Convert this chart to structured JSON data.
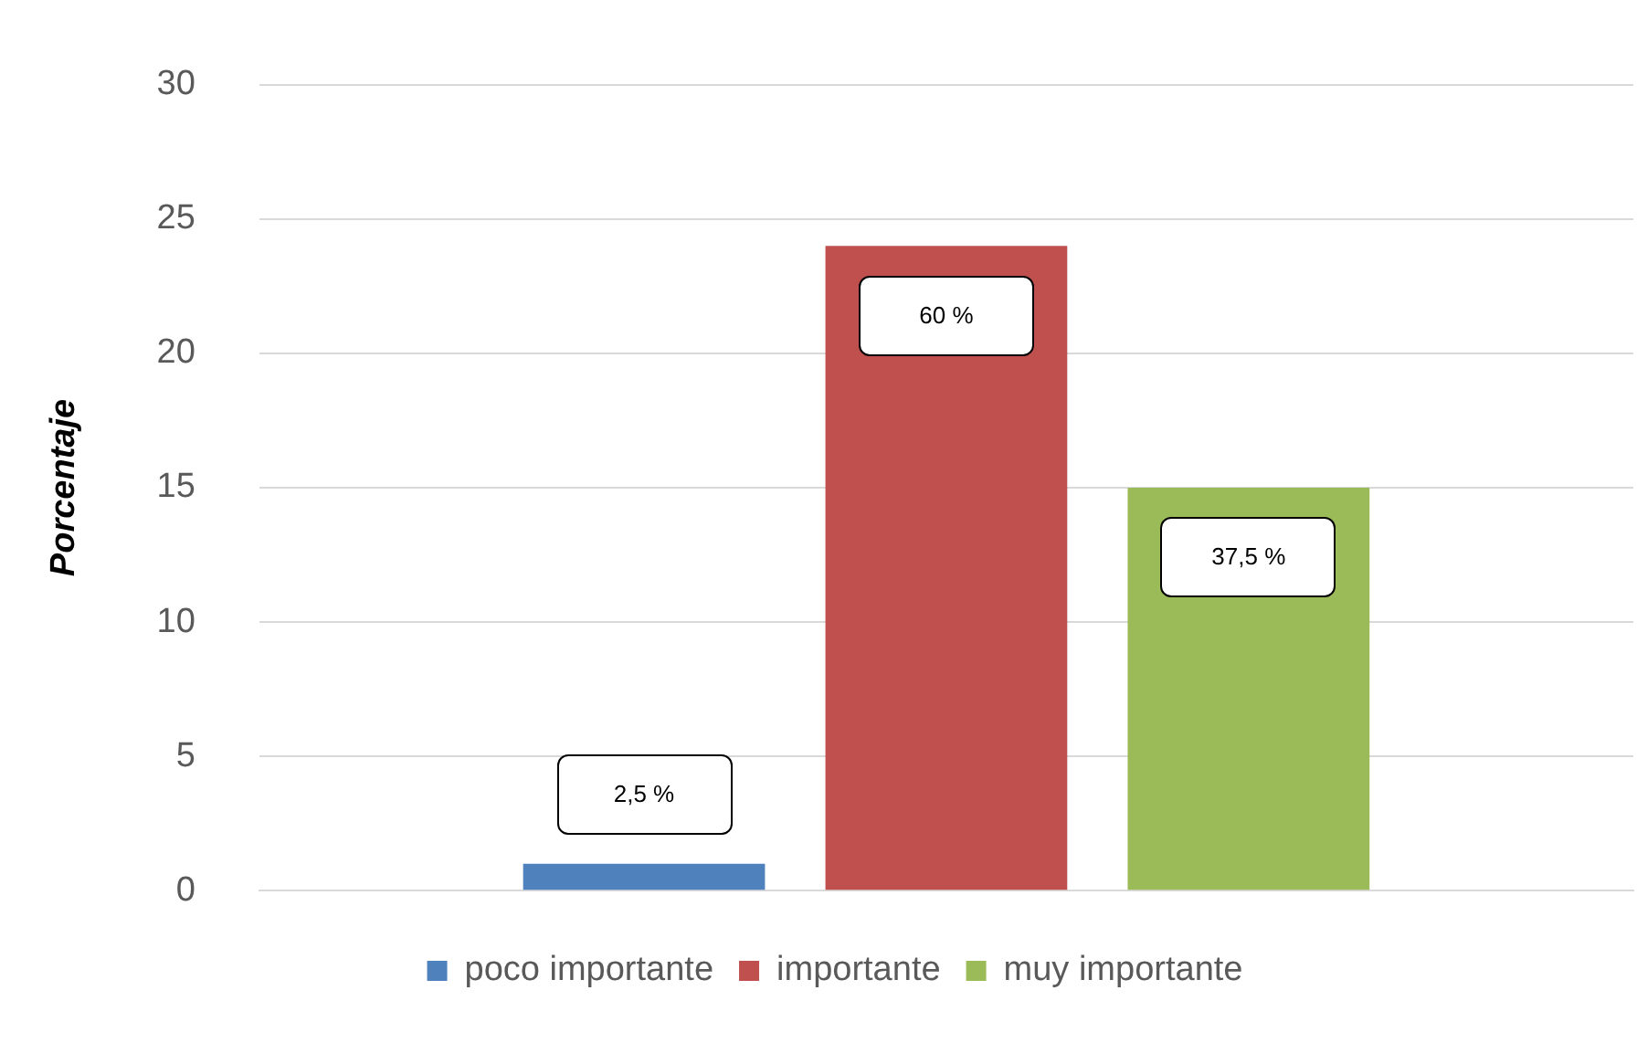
{
  "chart_data": {
    "type": "bar",
    "ylabel": "Porcentaje",
    "categories": [
      null
    ],
    "series": [
      {
        "name": "poco importante",
        "color": "#4f81bd",
        "values": [
          1
        ]
      },
      {
        "name": "importante",
        "color": "#c0504d",
        "values": [
          24
        ]
      },
      {
        "name": "muy importante",
        "color": "#9bbb59",
        "values": [
          15
        ]
      }
    ],
    "annotations": [
      "2,5 %",
      "60 %",
      "37,5 %"
    ],
    "ylim": [
      0,
      30
    ],
    "yticks": [
      0,
      5,
      10,
      15,
      20,
      25,
      30
    ],
    "grid": "y",
    "legend": "bottom"
  }
}
